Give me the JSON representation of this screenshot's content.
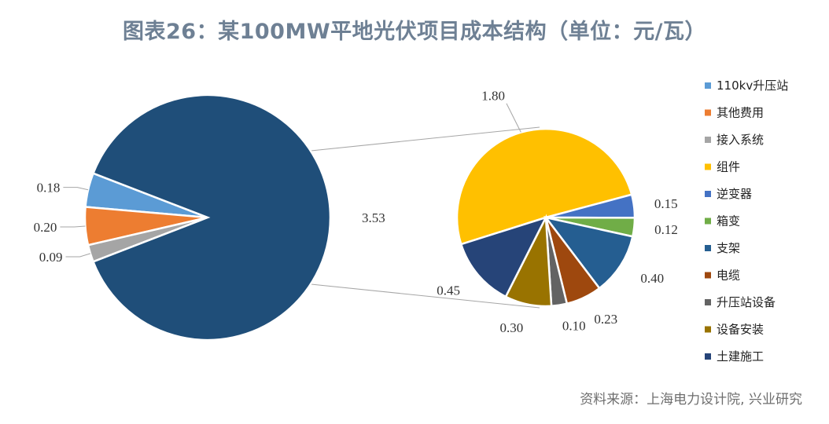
{
  "title": "图表26：某100MW平地光伏项目成本结构（单位：元/瓦）",
  "source": "资料来源：上海电力设计院, 兴业研究",
  "chart_data": {
    "type": "pie",
    "subtype": "pie-of-pie",
    "title": "图表26：某100MW平地光伏项目成本结构（单位：元/瓦）",
    "unit": "元/瓦",
    "legend_position": "right",
    "main_pie": [
      {
        "name": "110kv升压站",
        "value": 0.18,
        "label": "0.18",
        "color": "#5b9bd5"
      },
      {
        "name": "其他费用",
        "value": 0.2,
        "label": "0.20",
        "color": "#ed7d31"
      },
      {
        "name": "接入系统",
        "value": 0.09,
        "label": "0.09",
        "color": "#a5a5a5"
      },
      {
        "name": "",
        "value": 3.53,
        "label": "3.53",
        "color": "#1f4e79",
        "is_group": true
      }
    ],
    "secondary_pie": [
      {
        "name": "组件",
        "value": 1.8,
        "label": "1.80",
        "color": "#ffc000"
      },
      {
        "name": "逆变器",
        "value": 0.15,
        "label": "0.15",
        "color": "#4472c4"
      },
      {
        "name": "箱变",
        "value": 0.12,
        "label": "0.12",
        "color": "#70ad47"
      },
      {
        "name": "支架",
        "value": 0.4,
        "label": "0.40",
        "color": "#255e91"
      },
      {
        "name": "电缆",
        "value": 0.23,
        "label": "0.23",
        "color": "#9e480e"
      },
      {
        "name": "升压站设备",
        "value": 0.1,
        "label": "0.10",
        "color": "#636363"
      },
      {
        "name": "设备安装",
        "value": 0.3,
        "label": "0.30",
        "color": "#997300"
      },
      {
        "name": "土建施工",
        "value": 0.45,
        "label": "0.45",
        "color": "#264478"
      }
    ],
    "legend": [
      {
        "name": "110kv升压站",
        "color": "#5b9bd5"
      },
      {
        "name": "其他费用",
        "color": "#ed7d31"
      },
      {
        "name": "接入系统",
        "color": "#a5a5a5"
      },
      {
        "name": "组件",
        "color": "#ffc000"
      },
      {
        "name": "逆变器",
        "color": "#4472c4"
      },
      {
        "name": "箱变",
        "color": "#70ad47"
      },
      {
        "name": "支架",
        "color": "#255e91"
      },
      {
        "name": "电缆",
        "color": "#9e480e"
      },
      {
        "name": "升压站设备",
        "color": "#636363"
      },
      {
        "name": "设备安装",
        "color": "#997300"
      },
      {
        "name": "土建施工",
        "color": "#264478"
      }
    ]
  }
}
